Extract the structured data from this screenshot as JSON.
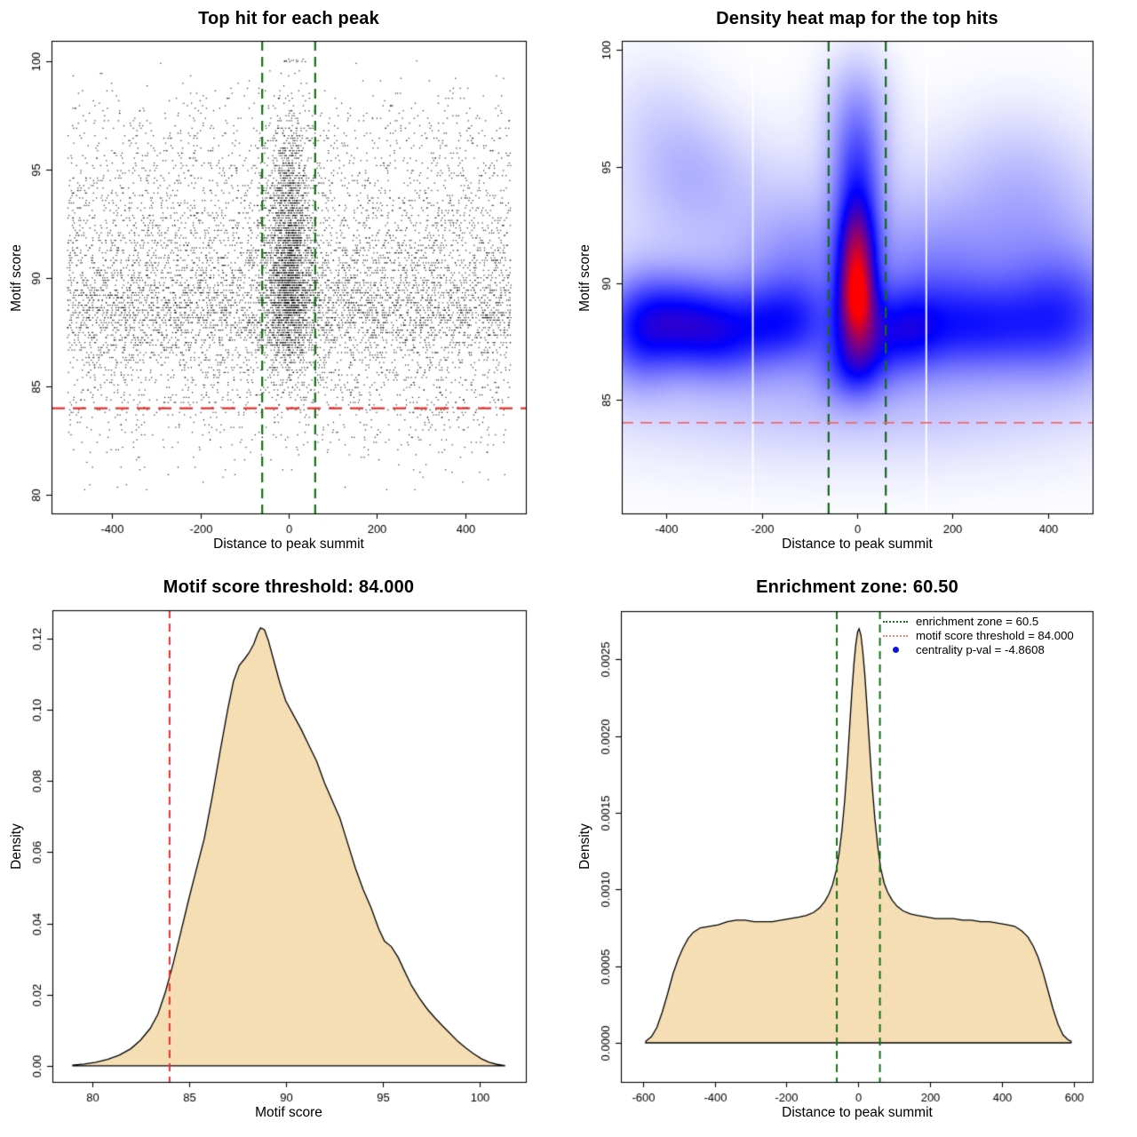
{
  "figure": {
    "kind": "R motif centrality diagnostic figure, 2x2 panels",
    "background": "#ffffff",
    "axis_color": "#000000",
    "tick_font_px": 13,
    "values": {
      "motif_score_threshold": "84.000",
      "enrichment_zone": "60.5",
      "centrality_p_val": "-4.8608"
    }
  },
  "chart_data": [
    {
      "type": "scatter",
      "title": "Top hit for each peak",
      "xlabel": "Distance to peak summit",
      "ylabel": "Motif score",
      "xlim": [
        -537,
        537
      ],
      "ylim": [
        79.15,
        100.95
      ],
      "box": {
        "l": 58,
        "t": 46,
        "r": 592,
        "b": 578
      },
      "xticks": {
        "values": [
          -400,
          -200,
          0,
          200,
          400
        ],
        "labels": [
          "-400",
          "-200",
          "0",
          "200",
          "400"
        ]
      },
      "yticks": {
        "values": [
          80,
          85,
          90,
          95,
          100
        ],
        "labels": [
          "80",
          "85",
          "90",
          "95",
          "100"
        ]
      },
      "vlines": [
        {
          "x": -60,
          "color": "#157015",
          "dash": [
            11,
            7
          ],
          "width": 2.2
        },
        {
          "x": 60,
          "color": "#157015",
          "dash": [
            11,
            7
          ],
          "width": 2.2
        }
      ],
      "hlines": [
        {
          "y": 84,
          "color": "#e62e2e",
          "dash": [
            15,
            9
          ],
          "width": 2.2
        }
      ],
      "scatter": {
        "seed": 42,
        "n": 10500,
        "point_color": "#000000",
        "point_alpha": 0.85,
        "x_range": [
          -502,
          502
        ],
        "central_fraction": 0.23,
        "central_x_sd": 26,
        "y_quantum": 0.115,
        "y_clip": [
          80.05,
          100.25
        ],
        "y_mix_global": [
          [
            0.36,
            88.4,
            1.15
          ],
          [
            0.24,
            90.5,
            1.7
          ],
          [
            0.16,
            93.3,
            2.1
          ],
          [
            0.12,
            85.8,
            1.4
          ],
          [
            0.07,
            96.3,
            1.5
          ],
          [
            0.05,
            83.6,
            1.5
          ]
        ],
        "y_mix_central": [
          [
            0.28,
            91.2,
            1.7
          ],
          [
            0.27,
            89.3,
            1.3
          ],
          [
            0.2,
            92.9,
            2.0
          ],
          [
            0.13,
            95.1,
            1.7
          ],
          [
            0.12,
            87.5,
            1.2
          ]
        ],
        "top_cluster": {
          "n": 14,
          "y": 100.05,
          "x_sd": 14
        }
      }
    },
    {
      "type": "heatmap",
      "title": "Density heat map for the top hits",
      "xlabel": "Distance to peak summit",
      "ylabel": "Motif score",
      "xlim": [
        -494,
        494
      ],
      "ylim": [
        80.1,
        100.4
      ],
      "box": {
        "l": 60,
        "t": 46,
        "r": 590,
        "b": 578
      },
      "xticks": {
        "values": [
          -400,
          -200,
          0,
          200,
          400
        ],
        "labels": [
          "-400",
          "-200",
          "0",
          "200",
          "400"
        ]
      },
      "yticks": {
        "values": [
          85,
          90,
          95,
          100
        ],
        "labels": [
          "85",
          "90",
          "95",
          "100"
        ]
      },
      "vlines": [
        {
          "x": -60,
          "color": "#14691b",
          "dash": [
            12,
            8
          ],
          "width": 2.2
        },
        {
          "x": 60,
          "color": "#14691b",
          "dash": [
            12,
            8
          ],
          "width": 2.2
        }
      ],
      "hlines": [
        {
          "y": 84,
          "color": "#f06a6a",
          "dash": [
            13,
            8
          ],
          "width": 1.8
        }
      ],
      "white_lines": [
        -219,
        145
      ],
      "heat": {
        "grid": 176,
        "saturation": 0.92,
        "colors": [
          "#ffffff",
          "#0000ff",
          "#ff0000"
        ],
        "kernels": [
          [
            0,
            91.0,
            27,
            1.55,
            0.8
          ],
          [
            0,
            89.25,
            25,
            1.15,
            0.75
          ],
          [
            0,
            92.7,
            33,
            2.1,
            0.45
          ],
          [
            3,
            87.6,
            36,
            1.35,
            0.5
          ],
          [
            0,
            95.4,
            40,
            1.75,
            0.32
          ],
          [
            0,
            97.9,
            52,
            1.7,
            0.22
          ],
          [
            -8,
            86.3,
            50,
            1.05,
            0.32
          ],
          [
            -380,
            88.4,
            70,
            1.35,
            0.55
          ],
          [
            -285,
            87.8,
            70,
            1.3,
            0.52
          ],
          [
            -462,
            87.9,
            55,
            1.6,
            0.5
          ],
          [
            245,
            88.1,
            110,
            1.35,
            0.52
          ],
          [
            440,
            88.6,
            85,
            1.8,
            0.5
          ],
          [
            95,
            87.9,
            55,
            1.25,
            0.45
          ],
          [
            -150,
            88.3,
            68,
            1.25,
            0.48
          ],
          [
            -345,
            94.7,
            85,
            1.75,
            0.17
          ],
          [
            -120,
            90.6,
            90,
            2.0,
            0.2
          ],
          [
            165,
            90.4,
            95,
            1.9,
            0.2
          ],
          [
            -420,
            97.3,
            85,
            1.9,
            0.11
          ],
          [
            380,
            92.0,
            110,
            2.3,
            0.14
          ],
          [
            335,
            95.1,
            100,
            2.1,
            0.11
          ],
          [
            0,
            88.4,
            430,
            3.4,
            0.22
          ],
          [
            0,
            84.8,
            430,
            1.9,
            0.12
          ],
          [
            0,
            93.2,
            430,
            2.6,
            0.1
          ]
        ]
      }
    },
    {
      "type": "area",
      "title": "Motif score threshold: 84.000",
      "xlabel": "Motif score",
      "ylabel": "Density",
      "xlim": [
        77.95,
        102.4
      ],
      "ylim": [
        -0.00453,
        0.12797
      ],
      "box": {
        "l": 59,
        "t": 47,
        "r": 592,
        "b": 578
      },
      "xticks": {
        "values": [
          80,
          85,
          90,
          95,
          100
        ],
        "labels": [
          "80",
          "85",
          "90",
          "95",
          "100"
        ]
      },
      "yticks": {
        "values": [
          0,
          0.02,
          0.04,
          0.06,
          0.08,
          0.1,
          0.12
        ],
        "labels": [
          "0.00",
          "0.02",
          "0.04",
          "0.06",
          "0.08",
          "0.10",
          "0.12"
        ]
      },
      "vlines": [
        {
          "x": 84,
          "color": "#e62e2e",
          "dash": [
            9,
            6
          ],
          "width": 2
        }
      ],
      "hlines": [],
      "curve": {
        "fill": "#f5deb3",
        "stroke": "#000000",
        "points": [
          [
            79,
            0.0002
          ],
          [
            79.6,
            0.0005
          ],
          [
            80.2,
            0.001
          ],
          [
            80.8,
            0.0018
          ],
          [
            81.4,
            0.003
          ],
          [
            82,
            0.0048
          ],
          [
            82.5,
            0.0072
          ],
          [
            83,
            0.0105
          ],
          [
            83.4,
            0.0145
          ],
          [
            83.8,
            0.021
          ],
          [
            84.2,
            0.029
          ],
          [
            84.6,
            0.038
          ],
          [
            85,
            0.047
          ],
          [
            85.4,
            0.0555
          ],
          [
            85.8,
            0.064
          ],
          [
            86.2,
            0.0755
          ],
          [
            86.6,
            0.088
          ],
          [
            87,
            0.1
          ],
          [
            87.3,
            0.108
          ],
          [
            87.6,
            0.1125
          ],
          [
            87.9,
            0.1145
          ],
          [
            88.1,
            0.116
          ],
          [
            88.35,
            0.1185
          ],
          [
            88.55,
            0.1215
          ],
          [
            88.7,
            0.123
          ],
          [
            88.9,
            0.1225
          ],
          [
            89.1,
            0.1195
          ],
          [
            89.4,
            0.1135
          ],
          [
            89.7,
            0.1075
          ],
          [
            90,
            0.1025
          ],
          [
            90.4,
            0.0985
          ],
          [
            90.8,
            0.0945
          ],
          [
            91.2,
            0.09
          ],
          [
            91.6,
            0.0855
          ],
          [
            92,
            0.0795
          ],
          [
            92.4,
            0.0745
          ],
          [
            92.8,
            0.0695
          ],
          [
            93.2,
            0.0625
          ],
          [
            93.6,
            0.0555
          ],
          [
            94,
            0.0495
          ],
          [
            94.4,
            0.0445
          ],
          [
            94.8,
            0.0385
          ],
          [
            95.1,
            0.035
          ],
          [
            95.45,
            0.0335
          ],
          [
            95.8,
            0.0305
          ],
          [
            96.1,
            0.027
          ],
          [
            96.5,
            0.0225
          ],
          [
            96.9,
            0.019
          ],
          [
            97.3,
            0.016
          ],
          [
            97.7,
            0.0135
          ],
          [
            98.1,
            0.0112
          ],
          [
            98.5,
            0.009
          ],
          [
            98.9,
            0.0068
          ],
          [
            99.3,
            0.005
          ],
          [
            99.7,
            0.0034
          ],
          [
            100.1,
            0.002
          ],
          [
            100.5,
            0.001
          ],
          [
            100.9,
            0.0004
          ],
          [
            101.3,
            0.0001
          ]
        ]
      }
    },
    {
      "type": "area",
      "title": "Enrichment zone: 60.50",
      "xlabel": "Distance to peak summit",
      "ylabel": "Density",
      "xlim": [
        -661,
        652
      ],
      "ylim": [
        -0.000255,
        0.002815
      ],
      "box": {
        "l": 59,
        "t": 48,
        "r": 590,
        "b": 578
      },
      "xticks": {
        "values": [
          -600,
          -400,
          -200,
          0,
          200,
          400,
          600
        ],
        "labels": [
          "-600",
          "-400",
          "-200",
          "0",
          "200",
          "400",
          "600"
        ]
      },
      "yticks": {
        "values": [
          0,
          0.0005,
          0.001,
          0.0015,
          0.002,
          0.0025
        ],
        "labels": [
          "0.0000",
          "0.0005",
          "0.0010",
          "0.0015",
          "0.0020",
          "0.0025"
        ]
      },
      "vlines": [
        {
          "x": -60,
          "color": "#157015",
          "dash": [
            9,
            6
          ],
          "width": 2
        },
        {
          "x": 60,
          "color": "#157015",
          "dash": [
            9,
            6
          ],
          "width": 2
        }
      ],
      "hlines": [],
      "curve": {
        "fill": "#f5deb3",
        "stroke": "#000000",
        "points": [
          [
            -592,
            1e-05
          ],
          [
            -576,
            4e-05
          ],
          [
            -561,
            0.0001
          ],
          [
            -546,
            0.0002
          ],
          [
            -531,
            0.00032
          ],
          [
            -516,
            0.00045
          ],
          [
            -501,
            0.00055
          ],
          [
            -488,
            0.00062
          ],
          [
            -474,
            0.00068
          ],
          [
            -460,
            0.00072
          ],
          [
            -440,
            0.00075
          ],
          [
            -415,
            0.00076
          ],
          [
            -390,
            0.00077
          ],
          [
            -365,
            0.00079
          ],
          [
            -340,
            0.0008
          ],
          [
            -315,
            0.0008
          ],
          [
            -290,
            0.00079
          ],
          [
            -265,
            0.00079
          ],
          [
            -240,
            0.00079
          ],
          [
            -215,
            0.0008
          ],
          [
            -190,
            0.00081
          ],
          [
            -165,
            0.00082
          ],
          [
            -145,
            0.00083
          ],
          [
            -125,
            0.00085
          ],
          [
            -108,
            0.00088
          ],
          [
            -94,
            0.00092
          ],
          [
            -82,
            0.00097
          ],
          [
            -72,
            0.00103
          ],
          [
            -62,
            0.00112
          ],
          [
            -54,
            0.00123
          ],
          [
            -46,
            0.00138
          ],
          [
            -38,
            0.00158
          ],
          [
            -31,
            0.00181
          ],
          [
            -24,
            0.00207
          ],
          [
            -18,
            0.00229
          ],
          [
            -12,
            0.00248
          ],
          [
            -7,
            0.0026
          ],
          [
            -2,
            0.00268
          ],
          [
            2,
            0.0027
          ],
          [
            7,
            0.00266
          ],
          [
            12,
            0.00256
          ],
          [
            18,
            0.0024
          ],
          [
            24,
            0.00219
          ],
          [
            31,
            0.00194
          ],
          [
            38,
            0.00169
          ],
          [
            46,
            0.00146
          ],
          [
            54,
            0.00128
          ],
          [
            62,
            0.00114
          ],
          [
            72,
            0.00104
          ],
          [
            82,
            0.00098
          ],
          [
            94,
            0.00093
          ],
          [
            108,
            0.00089
          ],
          [
            125,
            0.00086
          ],
          [
            145,
            0.00084
          ],
          [
            165,
            0.00083
          ],
          [
            190,
            0.00082
          ],
          [
            215,
            0.00081
          ],
          [
            240,
            0.00081
          ],
          [
            265,
            0.00081
          ],
          [
            290,
            0.0008
          ],
          [
            315,
            0.0008
          ],
          [
            340,
            0.00079
          ],
          [
            365,
            0.00079
          ],
          [
            390,
            0.00078
          ],
          [
            415,
            0.00077
          ],
          [
            435,
            0.00076
          ],
          [
            455,
            0.00073
          ],
          [
            472,
            0.00069
          ],
          [
            487,
            0.00063
          ],
          [
            500,
            0.00056
          ],
          [
            514,
            0.00046
          ],
          [
            528,
            0.00034
          ],
          [
            542,
            0.00022
          ],
          [
            556,
            0.00012
          ],
          [
            570,
            5e-05
          ],
          [
            584,
            2e-05
          ],
          [
            592,
            1e-05
          ]
        ]
      },
      "legend": {
        "items": [
          {
            "marker": "dotted-line",
            "color": "#1b6e1b",
            "label": "enrichment zone = 60.5"
          },
          {
            "marker": "dotted-line",
            "color": "#f08080",
            "label": "motif score threshold = 84.000"
          },
          {
            "marker": "dot",
            "color": "#1212e0",
            "label": "centrality p-val = -4.8608"
          }
        ]
      }
    }
  ]
}
